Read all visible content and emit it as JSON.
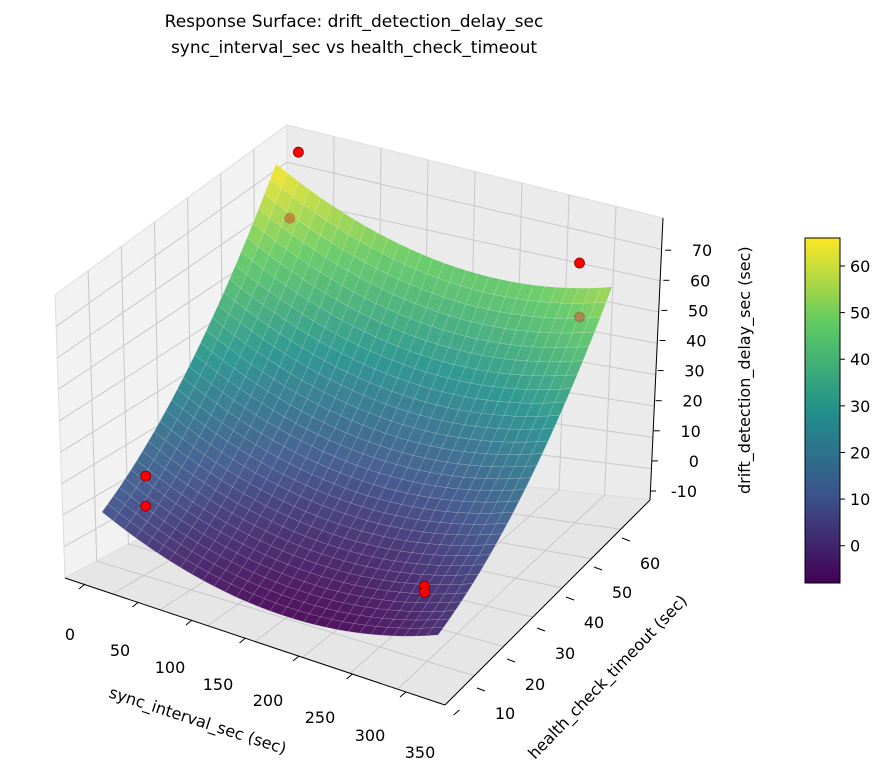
{
  "chart_data": {
    "type": "surface3d",
    "title": "Response Surface: drift_detection_delay_sec",
    "subtitle": "sync_interval_sec vs health_check_timeout",
    "xlabel": "sync_interval_sec (sec)",
    "ylabel": "health_check_timeout (sec)",
    "zlabel": "drift_detection_delay_sec (sec)",
    "xlim": [
      0,
      350
    ],
    "ylim": [
      5,
      65
    ],
    "zlim": [
      -10,
      75
    ],
    "xticks": [
      "0",
      "50",
      "100",
      "150",
      "200",
      "250",
      "300",
      "350"
    ],
    "yticks": [
      "10",
      "20",
      "30",
      "40",
      "50",
      "60"
    ],
    "zticks": [
      "-10",
      "0",
      "10",
      "20",
      "30",
      "40",
      "50",
      "60",
      "70"
    ],
    "surface": {
      "x_range": [
        0,
        300
      ],
      "y_range": [
        5,
        65
      ],
      "corner_values": {
        "x0_y5": 10,
        "x300_y5": 0,
        "x0_y65": 66,
        "x300_y65": 56
      },
      "minimum_value": -8,
      "colormap": "viridis"
    },
    "points": [
      {
        "x": 20,
        "y": 65,
        "z": 72
      },
      {
        "x": 20,
        "y": 62,
        "z": 53
      },
      {
        "x": 271,
        "y": 65,
        "z": 61
      },
      {
        "x": 271,
        "y": 65,
        "z": 43
      },
      {
        "x": 39,
        "y": 5,
        "z": 26
      },
      {
        "x": 39,
        "y": 5,
        "z": 16
      },
      {
        "x": 288,
        "y": 5,
        "z": 15
      },
      {
        "x": 288,
        "y": 5,
        "z": 13
      }
    ],
    "point_color": "#ff0000",
    "colorbar": {
      "range": [
        -8,
        66
      ],
      "ticks": [
        "0",
        "10",
        "20",
        "30",
        "40",
        "50",
        "60"
      ],
      "colormap": "viridis"
    },
    "grid": true
  }
}
